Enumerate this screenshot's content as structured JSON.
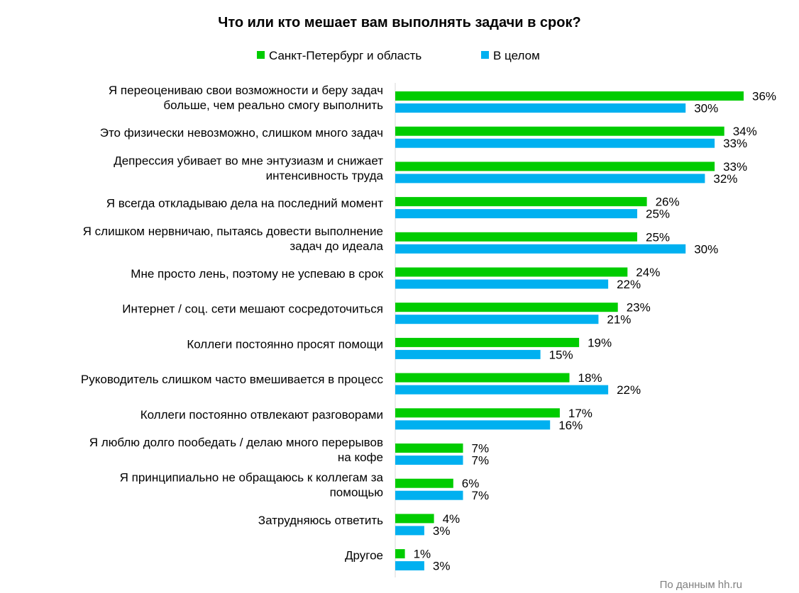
{
  "chart_data": {
    "type": "bar",
    "orientation": "horizontal",
    "title": "Что или кто мешает вам выполнять задачи в срок?",
    "source": "По данным  hh.ru",
    "unit": "%",
    "xlim": [
      0,
      36
    ],
    "legend_position": "top",
    "categories": [
      [
        "Я переоцениваю свои возможности и беру задач",
        "больше, чем реально смогу выполнить"
      ],
      [
        "Это физически невозможно, слишком  много задач"
      ],
      [
        "Депрессия убивает во мне энтузиазм и снижает",
        "интенсивность труда"
      ],
      [
        "Я всегда откладываю дела на последний  момент"
      ],
      [
        "Я слишком  нервничаю, пытаясь довести выполнение",
        "задач до идеала"
      ],
      [
        "Мне просто лень, поэтому  не успеваю в срок"
      ],
      [
        "Интернет / соц. сети мешают сосредоточиться"
      ],
      [
        "Коллеги  постоянно  просят помощи"
      ],
      [
        "Руководитель слишком  часто вмешивается в процесс"
      ],
      [
        "Коллеги  постоянно  отвлекают разговорами"
      ],
      [
        "Я люблю долго пообедать / делаю много перерывов",
        "на кофе"
      ],
      [
        "Я принципиально  не обращаюсь к коллегам за",
        "помощью"
      ],
      [
        "Затрудняюсь ответить"
      ],
      [
        "Другое"
      ]
    ],
    "series": [
      {
        "name": "Санкт-Петербург и область",
        "color": "#00CC00",
        "values": [
          36,
          34,
          33,
          26,
          25,
          24,
          23,
          19,
          18,
          17,
          7,
          6,
          4,
          1
        ]
      },
      {
        "name": "В целом",
        "color": "#00B0F0",
        "values": [
          30,
          33,
          32,
          25,
          30,
          22,
          21,
          15,
          22,
          16,
          7,
          7,
          3,
          3
        ]
      }
    ]
  }
}
